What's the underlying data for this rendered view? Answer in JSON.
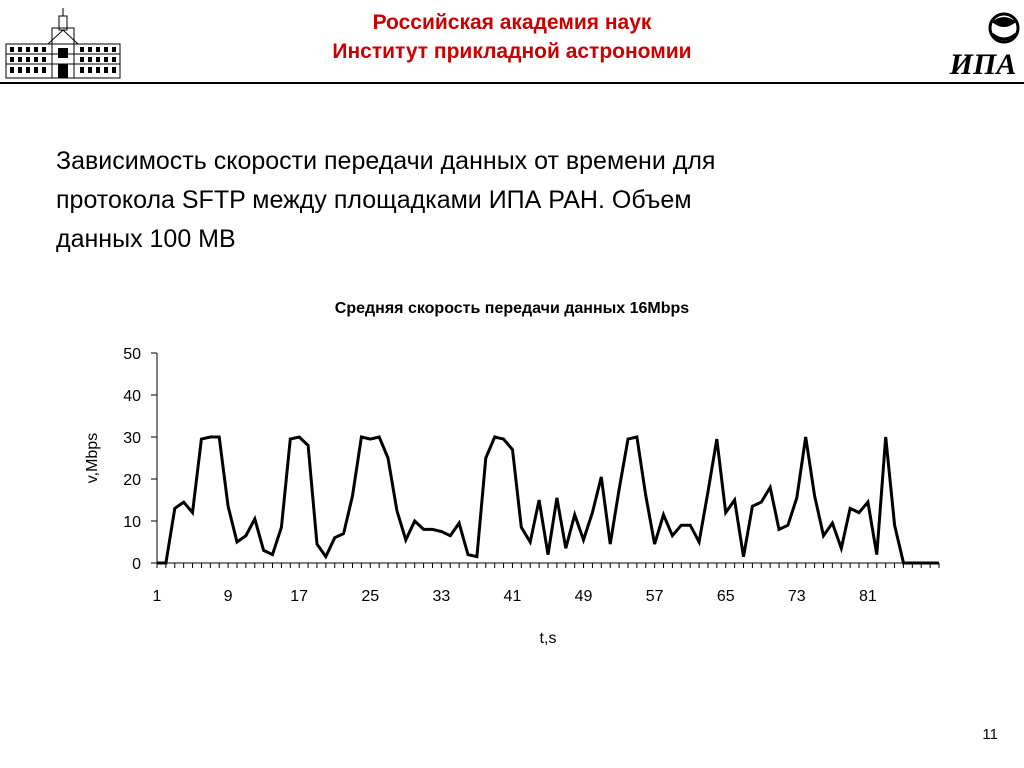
{
  "header": {
    "line1": "Российская академия наук",
    "line2": "Институт прикладной астрономии",
    "logo_text": "ИПА",
    "accent_color": "#cc0000"
  },
  "slide": {
    "title_lines": [
      "Зависимость скорости передачи данных от времени для",
      "протокола SFTP между площадками ИПА РАН. Объем",
      "данных 100 MB"
    ],
    "page_number": "11"
  },
  "chart_data": {
    "type": "line",
    "title": "Средняя скорость передачи данных 16Mbps",
    "xlabel": "t,s",
    "ylabel": "v,Mbps",
    "xlim": [
      1,
      89
    ],
    "ylim": [
      0,
      50
    ],
    "y_ticks": [
      0,
      10,
      20,
      30,
      40,
      50
    ],
    "x_tick_labels": [
      1,
      9,
      17,
      25,
      33,
      41,
      49,
      57,
      65,
      73,
      81
    ],
    "grid": false,
    "legend": "none",
    "series": [
      {
        "color": "#000000",
        "x": [
          1,
          2,
          3,
          4,
          5,
          6,
          7,
          8,
          9,
          10,
          11,
          12,
          13,
          14,
          15,
          16,
          17,
          18,
          19,
          20,
          21,
          22,
          23,
          24,
          25,
          26,
          27,
          28,
          29,
          30,
          31,
          32,
          33,
          34,
          35,
          36,
          37,
          38,
          39,
          40,
          41,
          42,
          43,
          44,
          45,
          46,
          47,
          48,
          49,
          50,
          51,
          52,
          53,
          54,
          55,
          56,
          57,
          58,
          59,
          60,
          61,
          62,
          63,
          64,
          65,
          66,
          67,
          68,
          69,
          70,
          71,
          72,
          73,
          74,
          75,
          76,
          77,
          78,
          79,
          80,
          81,
          82,
          83,
          84,
          85,
          86,
          87,
          88,
          89
        ],
        "values": [
          0,
          0,
          13,
          14.5,
          12,
          29.5,
          30,
          30,
          13.5,
          5,
          6.5,
          10.5,
          3,
          2,
          8.5,
          29.5,
          30,
          28,
          4.5,
          1.5,
          6,
          7,
          16,
          30,
          29.5,
          30,
          25,
          12.5,
          5.5,
          10,
          8,
          8,
          7.5,
          6.5,
          9.5,
          2,
          1.5,
          25,
          30,
          29.5,
          27,
          8.5,
          5,
          15,
          2,
          15.5,
          3.5,
          11.5,
          5.5,
          12,
          20.5,
          4.5,
          17.5,
          29.5,
          30,
          16,
          4.5,
          11.5,
          6.5,
          9,
          9,
          5,
          17,
          29.5,
          12,
          15,
          1.5,
          13.5,
          14.5,
          18,
          8,
          9,
          15.5,
          30,
          16,
          6.5,
          9.5,
          3.5,
          13,
          12,
          14.5,
          2,
          30,
          9,
          0,
          0,
          0,
          0,
          0
        ]
      }
    ]
  }
}
